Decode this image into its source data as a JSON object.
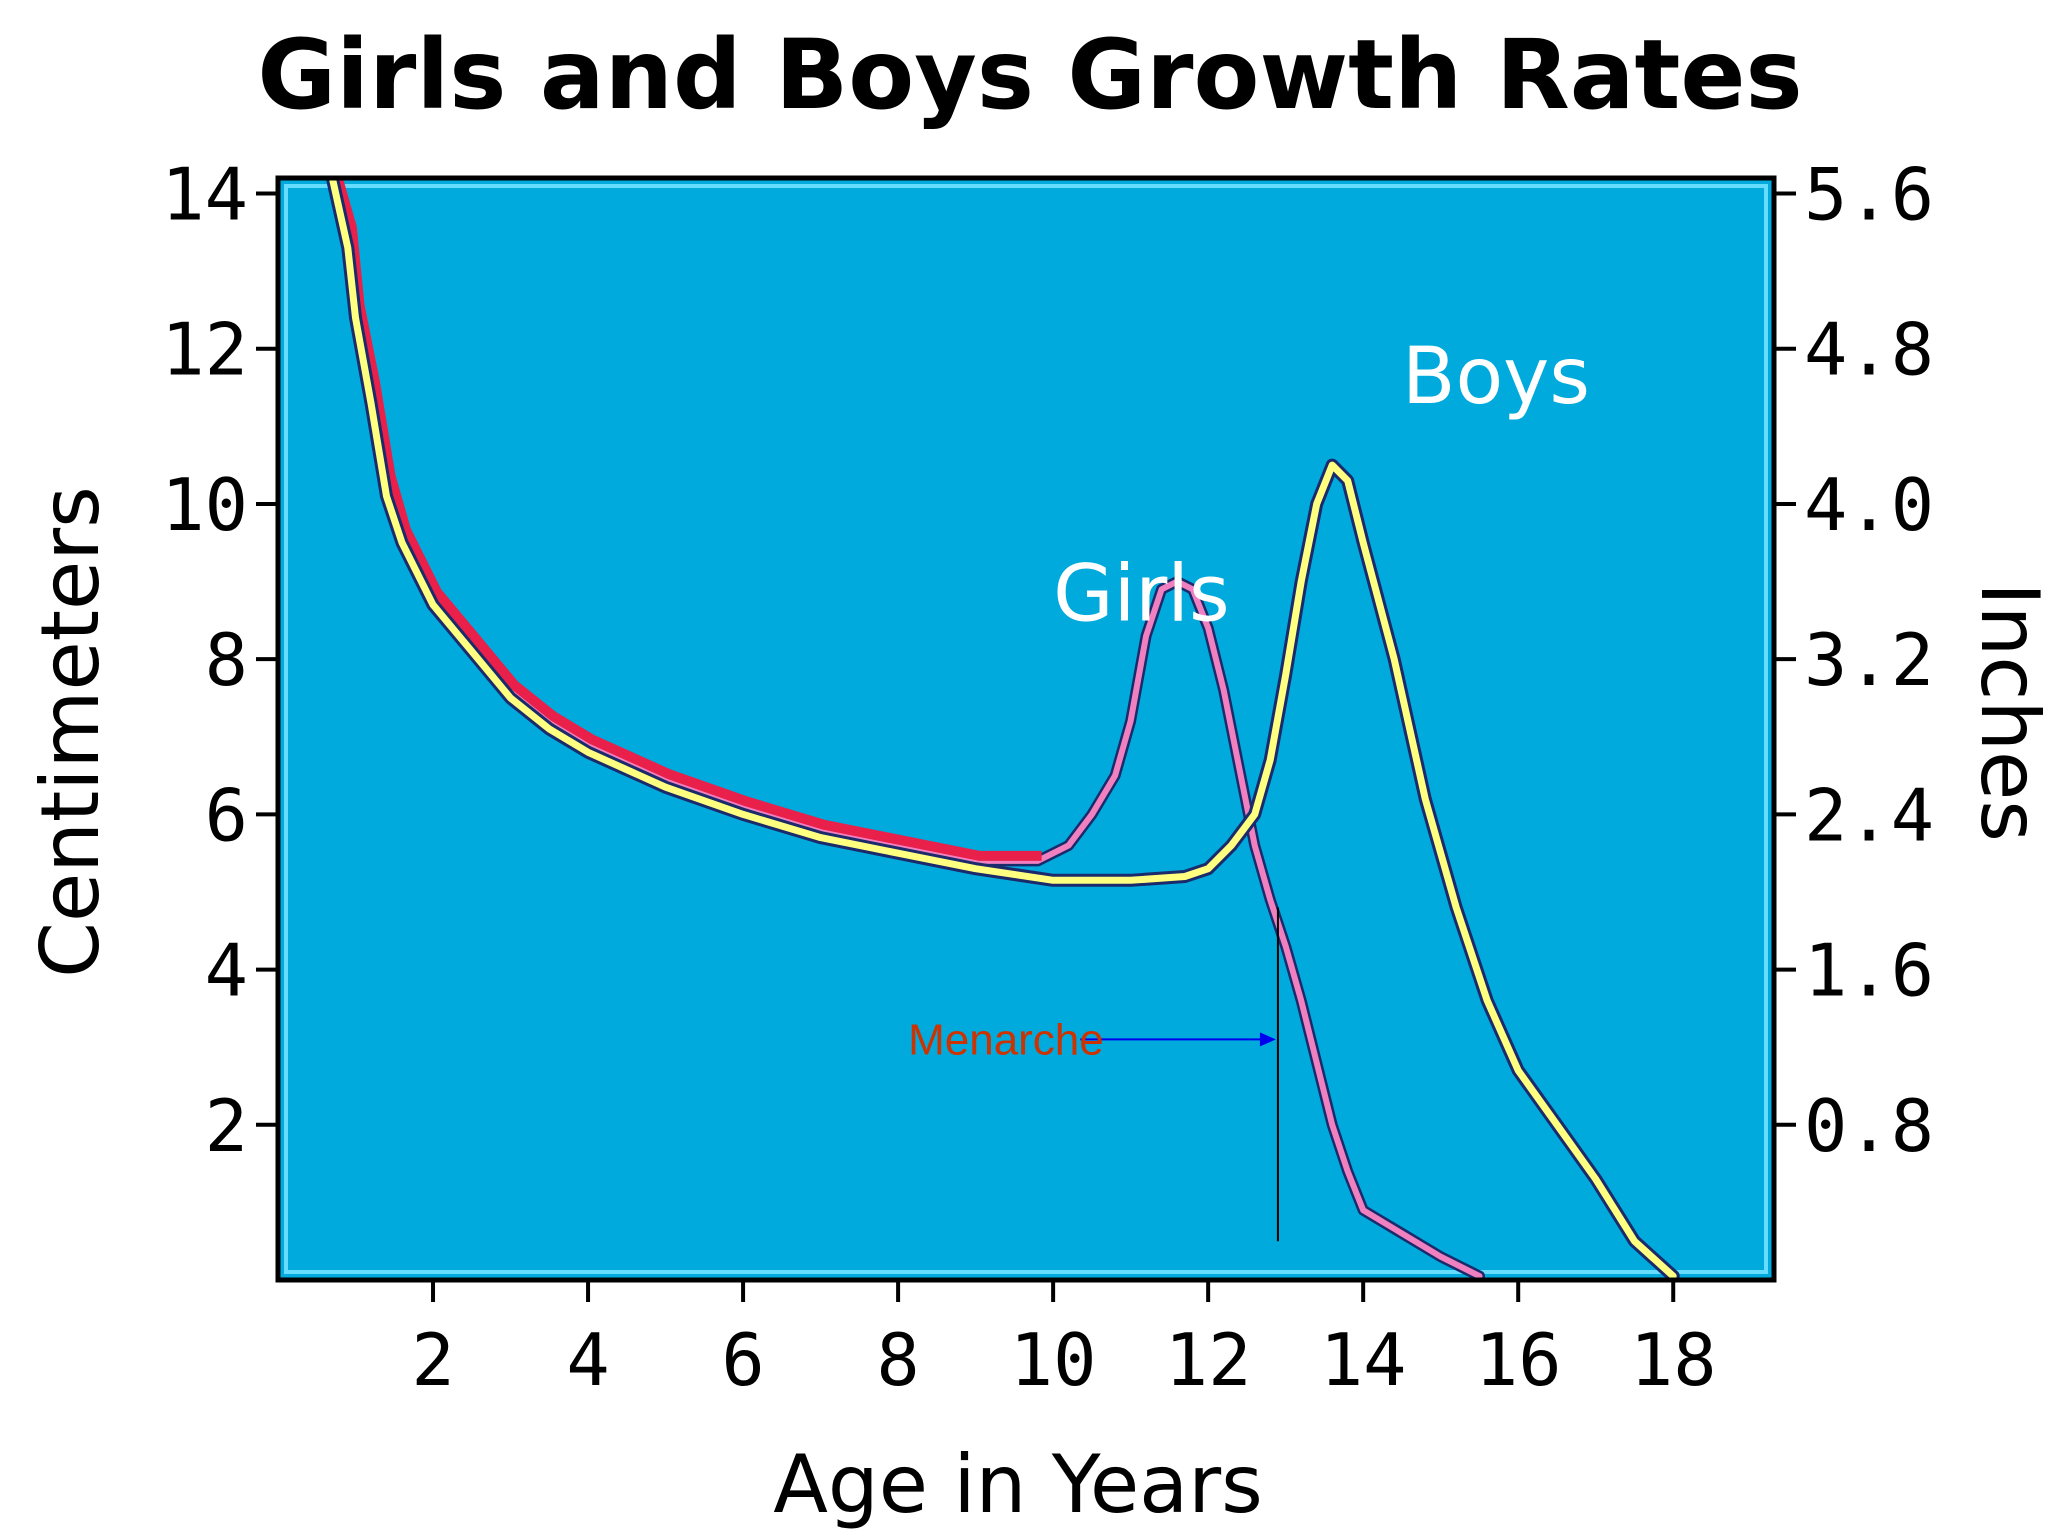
{
  "chart_data": {
    "type": "line",
    "title": "Girls and Boys Growth Rates",
    "xlabel": "Age in Years",
    "ylabel": "Centimeters",
    "ylabel_right": "Inches",
    "xlim": [
      0,
      19.3
    ],
    "ylim": [
      0,
      14.2
    ],
    "x_ticks": [
      2,
      4,
      6,
      8,
      10,
      12,
      14,
      16,
      18
    ],
    "y_ticks": [
      2,
      4,
      6,
      8,
      10,
      12,
      14
    ],
    "y_right_ticks": [
      "0.8",
      "1.6",
      "2.4",
      "3.2",
      "4.0",
      "4.8",
      "5.6"
    ],
    "plot_background": "#00AADD",
    "series": [
      {
        "name": "Girls",
        "color": "#F080C0",
        "points": [
          [
            0.7,
            14.2
          ],
          [
            0.9,
            13.5
          ],
          [
            1.0,
            12.5
          ],
          [
            1.2,
            11.5
          ],
          [
            1.4,
            10.3
          ],
          [
            1.6,
            9.6
          ],
          [
            2.0,
            8.8
          ],
          [
            2.5,
            8.2
          ],
          [
            3.0,
            7.6
          ],
          [
            3.5,
            7.2
          ],
          [
            4.0,
            6.9
          ],
          [
            5.0,
            6.45
          ],
          [
            6.0,
            6.1
          ],
          [
            7.0,
            5.8
          ],
          [
            8.0,
            5.6
          ],
          [
            9.0,
            5.4
          ],
          [
            9.8,
            5.4
          ],
          [
            10.2,
            5.6
          ],
          [
            10.5,
            6.0
          ],
          [
            10.8,
            6.5
          ],
          [
            11.0,
            7.2
          ],
          [
            11.2,
            8.3
          ],
          [
            11.4,
            8.9
          ],
          [
            11.6,
            9.0
          ],
          [
            11.8,
            8.9
          ],
          [
            12.0,
            8.4
          ],
          [
            12.2,
            7.6
          ],
          [
            12.4,
            6.6
          ],
          [
            12.6,
            5.6
          ],
          [
            12.8,
            4.9
          ],
          [
            13.0,
            4.3
          ],
          [
            13.2,
            3.6
          ],
          [
            13.4,
            2.8
          ],
          [
            13.6,
            2.0
          ],
          [
            13.8,
            1.4
          ],
          [
            14.0,
            0.9
          ],
          [
            14.5,
            0.6
          ],
          [
            15.0,
            0.3
          ],
          [
            15.5,
            0.05
          ]
        ]
      },
      {
        "name": "Boys",
        "color": "#FFFF80",
        "points": [
          [
            0.7,
            14.2
          ],
          [
            0.9,
            13.3
          ],
          [
            1.0,
            12.4
          ],
          [
            1.2,
            11.3
          ],
          [
            1.4,
            10.1
          ],
          [
            1.6,
            9.5
          ],
          [
            2.0,
            8.7
          ],
          [
            2.5,
            8.1
          ],
          [
            3.0,
            7.5
          ],
          [
            3.5,
            7.1
          ],
          [
            4.0,
            6.8
          ],
          [
            5.0,
            6.35
          ],
          [
            6.0,
            6.0
          ],
          [
            7.0,
            5.7
          ],
          [
            8.0,
            5.5
          ],
          [
            9.0,
            5.3
          ],
          [
            10.0,
            5.15
          ],
          [
            11.0,
            5.15
          ],
          [
            11.7,
            5.2
          ],
          [
            12.0,
            5.3
          ],
          [
            12.3,
            5.6
          ],
          [
            12.6,
            6.0
          ],
          [
            12.8,
            6.7
          ],
          [
            13.0,
            7.8
          ],
          [
            13.2,
            9.0
          ],
          [
            13.4,
            10.0
          ],
          [
            13.6,
            10.5
          ],
          [
            13.8,
            10.3
          ],
          [
            14.0,
            9.5
          ],
          [
            14.4,
            8.0
          ],
          [
            14.8,
            6.2
          ],
          [
            15.2,
            4.8
          ],
          [
            15.6,
            3.6
          ],
          [
            16.0,
            2.7
          ],
          [
            16.5,
            2.0
          ],
          [
            17.0,
            1.3
          ],
          [
            17.5,
            0.5
          ],
          [
            18.0,
            0.05
          ]
        ]
      }
    ],
    "series_labels": [
      {
        "text": "Girls",
        "x": 10.0,
        "y": 8.5
      },
      {
        "text": "Boys",
        "x": 14.5,
        "y": 11.3
      }
    ],
    "annotation": {
      "text": "Menarche",
      "text_color": "#CC3300",
      "arrow_color": "#0000EE",
      "line_color": "#000000",
      "x": 12.9,
      "line_y_from": 4.8,
      "line_y_to": 0.5,
      "arrow_y": 3.1,
      "text_x": 8.0,
      "arrow_from_x": 10.35
    }
  }
}
